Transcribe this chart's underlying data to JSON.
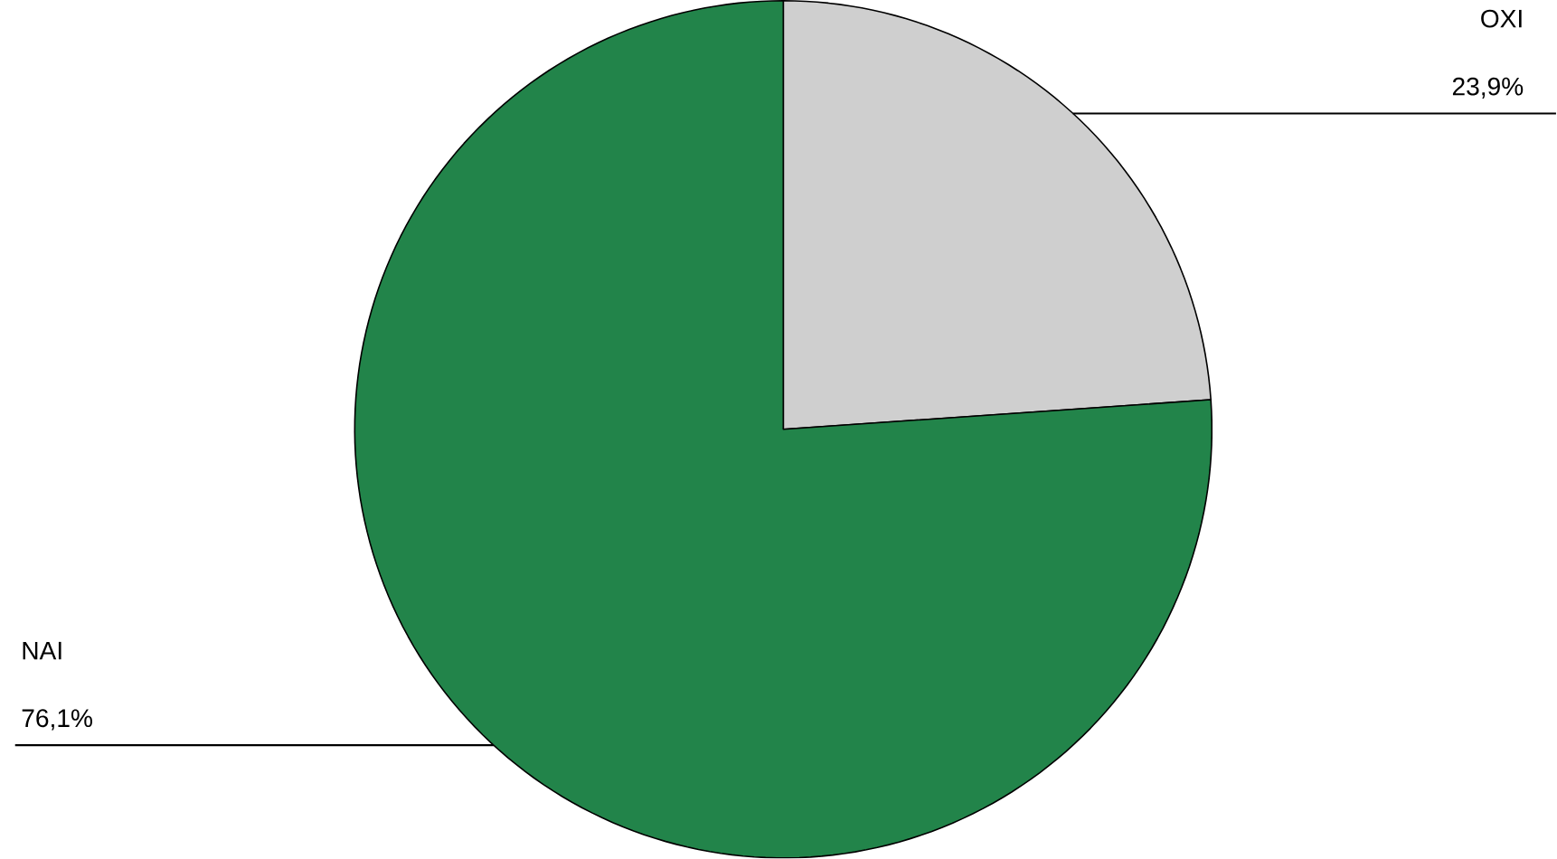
{
  "chart_data": {
    "type": "pie",
    "categories": [
      "OXI",
      "NAI"
    ],
    "values": [
      23.9,
      76.1
    ],
    "colors": [
      "#cfcfcf",
      "#22844a"
    ],
    "value_labels": [
      "23,9%",
      "76,1%"
    ]
  }
}
